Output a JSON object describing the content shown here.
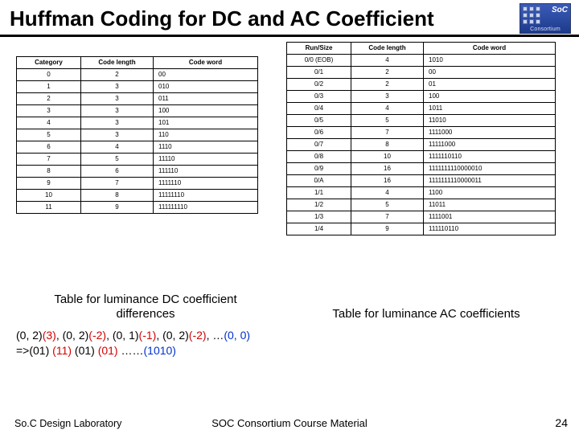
{
  "title": "Huffman Coding for DC and AC Coefficient",
  "logo": {
    "abbr": "SoC",
    "sub": "Consortium"
  },
  "left_table": {
    "headers": [
      "Category",
      "Code length",
      "Code word"
    ],
    "col_align": [
      "center",
      "center",
      "left"
    ],
    "rows": [
      [
        "0",
        "2",
        "00"
      ],
      [
        "1",
        "3",
        "010"
      ],
      [
        "2",
        "3",
        "011"
      ],
      [
        "3",
        "3",
        "100"
      ],
      [
        "4",
        "3",
        "101"
      ],
      [
        "5",
        "3",
        "110"
      ],
      [
        "6",
        "4",
        "1110"
      ],
      [
        "7",
        "5",
        "11110"
      ],
      [
        "8",
        "6",
        "111110"
      ],
      [
        "9",
        "7",
        "1111110"
      ],
      [
        "10",
        "8",
        "11111110"
      ],
      [
        "11",
        "9",
        "111111110"
      ]
    ],
    "caption": "Table for luminance DC coefficient differences"
  },
  "right_table": {
    "headers": [
      "Run/Size",
      "Code length",
      "Code word"
    ],
    "col_align": [
      "center",
      "center",
      "left"
    ],
    "rows": [
      [
        "0/0  (EOB)",
        "4",
        "1010"
      ],
      [
        "0/1",
        "2",
        "00"
      ],
      [
        "0/2",
        "2",
        "01"
      ],
      [
        "0/3",
        "3",
        "100"
      ],
      [
        "0/4",
        "4",
        "1011"
      ],
      [
        "0/5",
        "5",
        "11010"
      ],
      [
        "0/6",
        "7",
        "1111000"
      ],
      [
        "0/7",
        "8",
        "11111000"
      ],
      [
        "0/8",
        "10",
        "1111110110"
      ],
      [
        "0/9",
        "16",
        "1111111110000010"
      ],
      [
        "0/A",
        "16",
        "1111111110000011"
      ],
      [
        "1/1",
        "4",
        "1100"
      ],
      [
        "1/2",
        "5",
        "11011"
      ],
      [
        "1/3",
        "7",
        "1111001"
      ],
      [
        "1/4",
        "9",
        "111110110"
      ]
    ],
    "caption": "Table for luminance AC coefficients"
  },
  "example": {
    "parts": [
      {
        "t": "(0, 2)",
        "c": "blk"
      },
      {
        "t": "(3)",
        "c": "red"
      },
      {
        "t": ", ",
        "c": "blk"
      },
      {
        "t": "(0, 2)",
        "c": "blk"
      },
      {
        "t": "(-2)",
        "c": "red"
      },
      {
        "t": ", ",
        "c": "blk"
      },
      {
        "t": "(0, 1)",
        "c": "blk"
      },
      {
        "t": "(-1)",
        "c": "red"
      },
      {
        "t": ", ",
        "c": "blk"
      },
      {
        "t": "(0, 2)",
        "c": "blk"
      },
      {
        "t": "(-2)",
        "c": "red"
      },
      {
        "t": ", …",
        "c": "blk"
      },
      {
        "t": "(0, 0)",
        "c": "blue"
      }
    ],
    "line2_prefix": "=>",
    "line2_parts": [
      {
        "t": "(01)",
        "c": "blk"
      },
      {
        "t": " (11) ",
        "c": "red"
      },
      {
        "t": "(01)",
        "c": "blk"
      },
      {
        "t": " (01)",
        "c": "red"
      },
      {
        "t": " ……",
        "c": "blk"
      },
      {
        "t": "(1010)",
        "c": "blue"
      }
    ]
  },
  "footer": {
    "left": "So.C Design Laboratory",
    "center": "SOC Consortium Course Material",
    "page": "24"
  },
  "style": {
    "title_fontsize": 26,
    "table_fontsize": 8,
    "caption_fontsize": 15,
    "example_fontsize": 14,
    "footer_fontsize": 13,
    "colors": {
      "text": "#000000",
      "red": "#d40000",
      "blue": "#0030d0",
      "logo_bg_top": "#3b5bb8",
      "logo_bg_bot": "#1d3a8a",
      "background": "#ffffff",
      "border": "#000000"
    }
  }
}
